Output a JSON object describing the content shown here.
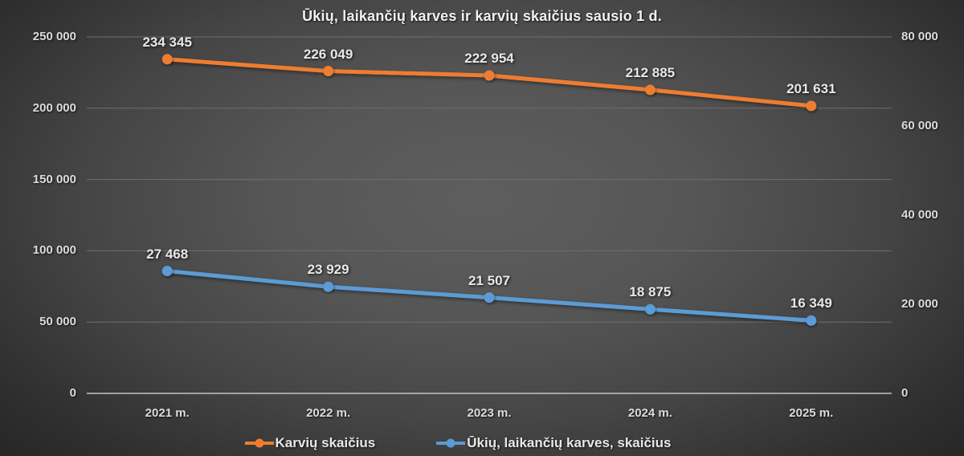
{
  "chart_data": {
    "type": "line",
    "title": "Ūkių, laikančių karves ir karvių skaičius sausio 1 d.",
    "categories": [
      "2021 m.",
      "2022 m.",
      "2023 m.",
      "2024 m.",
      "2025 m."
    ],
    "series": [
      {
        "name": "Karvių skaičius",
        "axis": "left",
        "color": "#ED7D31",
        "values": [
          234345,
          226049,
          222954,
          212885,
          201631
        ],
        "labels": [
          "234 345",
          "226 049",
          "222 954",
          "212 885",
          "201 631"
        ]
      },
      {
        "name": "Ūkių, laikančių karves, skaičius",
        "axis": "right",
        "color": "#5B9BD5",
        "values": [
          27468,
          23929,
          21507,
          18875,
          16349
        ],
        "labels": [
          "27 468",
          "23 929",
          "21 507",
          "18 875",
          "16 349"
        ]
      }
    ],
    "axes": {
      "left": {
        "min": 0,
        "max": 250000,
        "step": 50000,
        "ticks": [
          0,
          50000,
          100000,
          150000,
          200000,
          250000
        ],
        "tick_labels": [
          "0",
          "50 000",
          "100 000",
          "150 000",
          "200 000",
          "250 000"
        ]
      },
      "right": {
        "min": 0,
        "max": 80000,
        "step": 20000,
        "ticks": [
          0,
          20000,
          40000,
          60000,
          80000
        ],
        "tick_labels": [
          "0",
          "20 000",
          "40 000",
          "60 000",
          "80 000"
        ]
      }
    },
    "grid": true,
    "legend_position": "bottom"
  },
  "style": {
    "background_center": "#5e5e5e",
    "background_edge": "#242424",
    "text_color": "#eae8e5",
    "gridline_color": "#6f6f6f",
    "axis_line_color": "#c3c3c3"
  }
}
